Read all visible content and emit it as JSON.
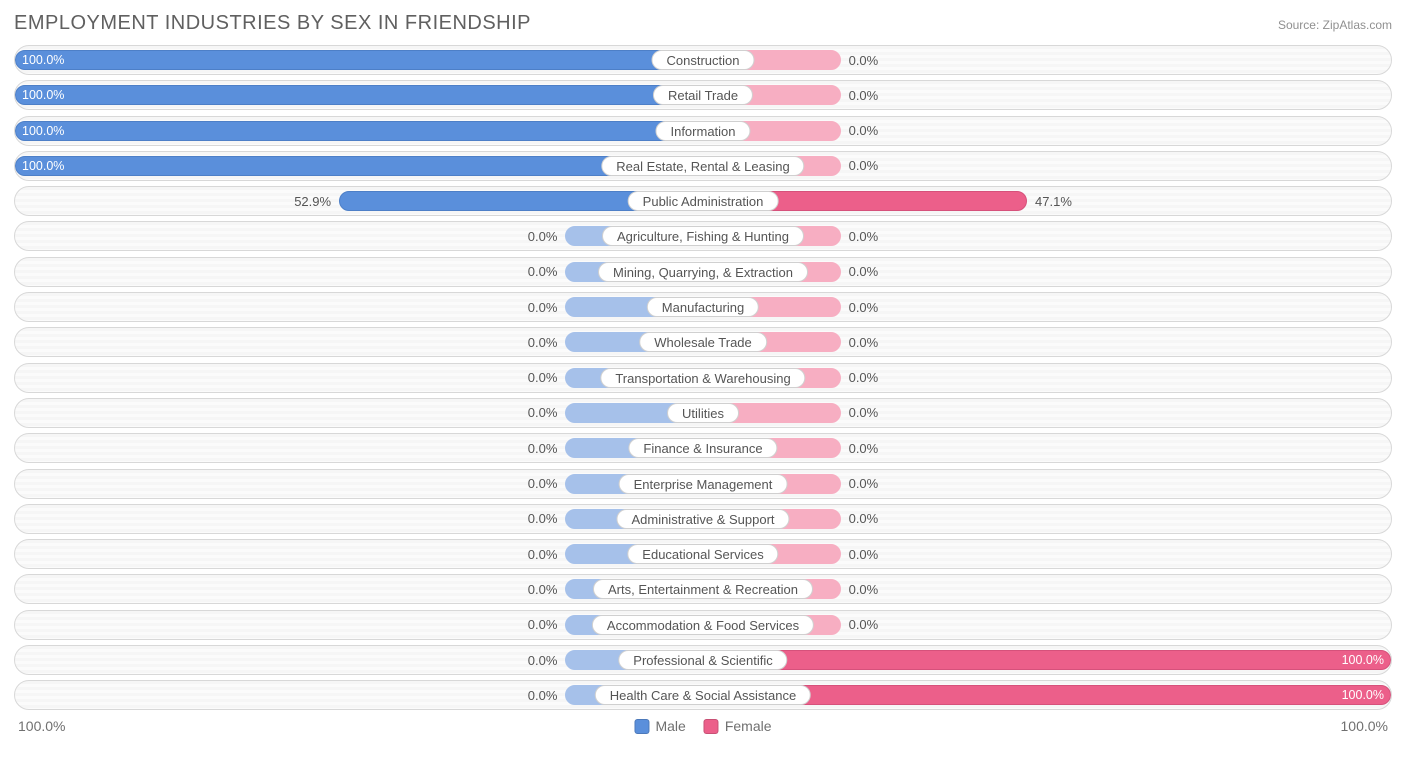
{
  "title": "EMPLOYMENT INDUSTRIES BY SEX IN FRIENDSHIP",
  "source": "Source: ZipAtlas.com",
  "chart": {
    "type": "diverging-bar",
    "male_color_strong": "#5a8fdb",
    "male_color_light": "#a6c1ea",
    "male_border": "#4d7fc7",
    "female_color_strong": "#ec5f8a",
    "female_color_light": "#f7aec2",
    "female_border": "#d6517b",
    "row_border_color": "#d8d8d8",
    "row_bg_stripe_a": "#f6f6f6",
    "row_bg_stripe_b": "#fbfbfb",
    "min_bar_pct": 20,
    "axis_left": "100.0%",
    "axis_right": "100.0%",
    "legend": [
      {
        "label": "Male",
        "color": "#5a8fdb"
      },
      {
        "label": "Female",
        "color": "#ec5f8a"
      }
    ],
    "rows": [
      {
        "category": "Construction",
        "male_pct": 100.0,
        "female_pct": 0.0,
        "male_label": "100.0%",
        "female_label": "0.0%"
      },
      {
        "category": "Retail Trade",
        "male_pct": 100.0,
        "female_pct": 0.0,
        "male_label": "100.0%",
        "female_label": "0.0%"
      },
      {
        "category": "Information",
        "male_pct": 100.0,
        "female_pct": 0.0,
        "male_label": "100.0%",
        "female_label": "0.0%"
      },
      {
        "category": "Real Estate, Rental & Leasing",
        "male_pct": 100.0,
        "female_pct": 0.0,
        "male_label": "100.0%",
        "female_label": "0.0%"
      },
      {
        "category": "Public Administration",
        "male_pct": 52.9,
        "female_pct": 47.1,
        "male_label": "52.9%",
        "female_label": "47.1%"
      },
      {
        "category": "Agriculture, Fishing & Hunting",
        "male_pct": 0.0,
        "female_pct": 0.0,
        "male_label": "0.0%",
        "female_label": "0.0%"
      },
      {
        "category": "Mining, Quarrying, & Extraction",
        "male_pct": 0.0,
        "female_pct": 0.0,
        "male_label": "0.0%",
        "female_label": "0.0%"
      },
      {
        "category": "Manufacturing",
        "male_pct": 0.0,
        "female_pct": 0.0,
        "male_label": "0.0%",
        "female_label": "0.0%"
      },
      {
        "category": "Wholesale Trade",
        "male_pct": 0.0,
        "female_pct": 0.0,
        "male_label": "0.0%",
        "female_label": "0.0%"
      },
      {
        "category": "Transportation & Warehousing",
        "male_pct": 0.0,
        "female_pct": 0.0,
        "male_label": "0.0%",
        "female_label": "0.0%"
      },
      {
        "category": "Utilities",
        "male_pct": 0.0,
        "female_pct": 0.0,
        "male_label": "0.0%",
        "female_label": "0.0%"
      },
      {
        "category": "Finance & Insurance",
        "male_pct": 0.0,
        "female_pct": 0.0,
        "male_label": "0.0%",
        "female_label": "0.0%"
      },
      {
        "category": "Enterprise Management",
        "male_pct": 0.0,
        "female_pct": 0.0,
        "male_label": "0.0%",
        "female_label": "0.0%"
      },
      {
        "category": "Administrative & Support",
        "male_pct": 0.0,
        "female_pct": 0.0,
        "male_label": "0.0%",
        "female_label": "0.0%"
      },
      {
        "category": "Educational Services",
        "male_pct": 0.0,
        "female_pct": 0.0,
        "male_label": "0.0%",
        "female_label": "0.0%"
      },
      {
        "category": "Arts, Entertainment & Recreation",
        "male_pct": 0.0,
        "female_pct": 0.0,
        "male_label": "0.0%",
        "female_label": "0.0%"
      },
      {
        "category": "Accommodation & Food Services",
        "male_pct": 0.0,
        "female_pct": 0.0,
        "male_label": "0.0%",
        "female_label": "0.0%"
      },
      {
        "category": "Professional & Scientific",
        "male_pct": 0.0,
        "female_pct": 100.0,
        "male_label": "0.0%",
        "female_label": "100.0%"
      },
      {
        "category": "Health Care & Social Assistance",
        "male_pct": 0.0,
        "female_pct": 100.0,
        "male_label": "0.0%",
        "female_label": "100.0%"
      }
    ]
  }
}
